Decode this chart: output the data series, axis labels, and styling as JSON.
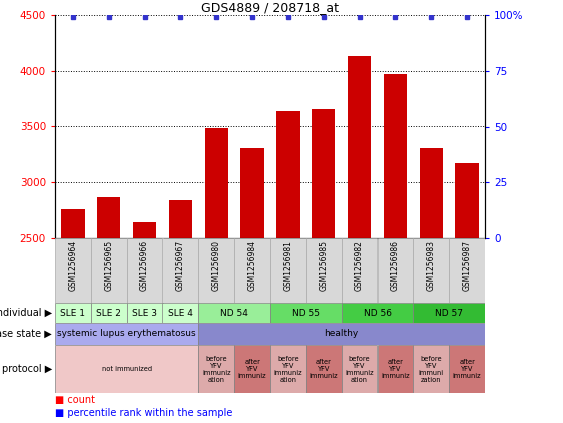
{
  "title": "GDS4889 / 208718_at",
  "samples": [
    "GSM1256964",
    "GSM1256965",
    "GSM1256966",
    "GSM1256967",
    "GSM1256980",
    "GSM1256984",
    "GSM1256981",
    "GSM1256985",
    "GSM1256982",
    "GSM1256986",
    "GSM1256983",
    "GSM1256987"
  ],
  "counts": [
    2760,
    2870,
    2640,
    2840,
    3490,
    3310,
    3640,
    3660,
    4130,
    3970,
    3310,
    3170
  ],
  "ylim_left": [
    2500,
    4500
  ],
  "ylim_right": [
    0,
    100
  ],
  "yticks_left": [
    2500,
    3000,
    3500,
    4000,
    4500
  ],
  "yticks_right": [
    0,
    25,
    50,
    75,
    100
  ],
  "bar_color": "#cc0000",
  "dot_color": "#3333cc",
  "individual_spans": [
    {
      "label": "SLE 1",
      "start": 0,
      "end": 1,
      "color": "#ccffcc"
    },
    {
      "label": "SLE 2",
      "start": 1,
      "end": 2,
      "color": "#ccffcc"
    },
    {
      "label": "SLE 3",
      "start": 2,
      "end": 3,
      "color": "#ccffcc"
    },
    {
      "label": "SLE 4",
      "start": 3,
      "end": 4,
      "color": "#ccffcc"
    },
    {
      "label": "ND 54",
      "start": 4,
      "end": 6,
      "color": "#99ee99"
    },
    {
      "label": "ND 55",
      "start": 6,
      "end": 8,
      "color": "#66dd66"
    },
    {
      "label": "ND 56",
      "start": 8,
      "end": 10,
      "color": "#44cc44"
    },
    {
      "label": "ND 57",
      "start": 10,
      "end": 12,
      "color": "#33bb33"
    }
  ],
  "disease_spans": [
    {
      "label": "systemic lupus erythematosus",
      "start": 0,
      "end": 4,
      "color": "#aaaaee"
    },
    {
      "label": "healthy",
      "start": 4,
      "end": 12,
      "color": "#8888cc"
    }
  ],
  "protocol_spans": [
    {
      "label": "not immunized",
      "start": 0,
      "end": 4,
      "color": "#f0c8c8"
    },
    {
      "label": "before\nYFV\nimmuniz\nation",
      "start": 4,
      "end": 5,
      "color": "#ddaaaa"
    },
    {
      "label": "after\nYFV\nimmuniz",
      "start": 5,
      "end": 6,
      "color": "#cc7777"
    },
    {
      "label": "before\nYFV\nimmuniz\nation",
      "start": 6,
      "end": 7,
      "color": "#ddaaaa"
    },
    {
      "label": "after\nYFV\nimmuniz",
      "start": 7,
      "end": 8,
      "color": "#cc7777"
    },
    {
      "label": "before\nYFV\nimmuniz\nation",
      "start": 8,
      "end": 9,
      "color": "#ddaaaa"
    },
    {
      "label": "after\nYFV\nimmuniz",
      "start": 9,
      "end": 10,
      "color": "#cc7777"
    },
    {
      "label": "before\nYFV\nimmuni\nzation",
      "start": 10,
      "end": 11,
      "color": "#ddaaaa"
    },
    {
      "label": "after\nYFV\nimmuniz",
      "start": 11,
      "end": 12,
      "color": "#cc7777"
    }
  ],
  "sample_bg": "#d8d8d8",
  "sample_border": "#aaaaaa"
}
